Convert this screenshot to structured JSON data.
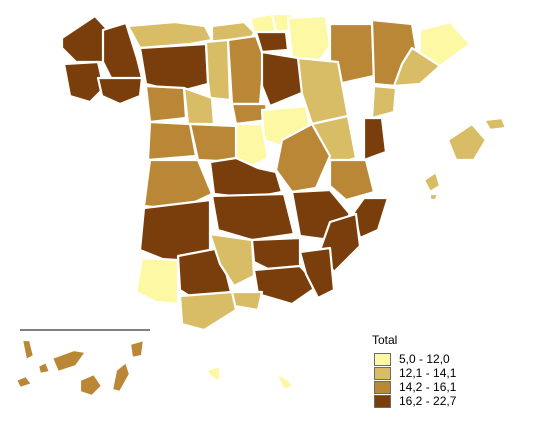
{
  "legend": {
    "title": "Total",
    "classes": [
      {
        "label": "5,0 - 12,0",
        "color": "#fdf8a4"
      },
      {
        "label": "12,1 - 14,1",
        "color": "#d9bd66"
      },
      {
        "label": "14,2 - 16,1",
        "color": "#b98735"
      },
      {
        "label": "16,2 - 22,7",
        "color": "#7a3e0c"
      }
    ]
  }
}
